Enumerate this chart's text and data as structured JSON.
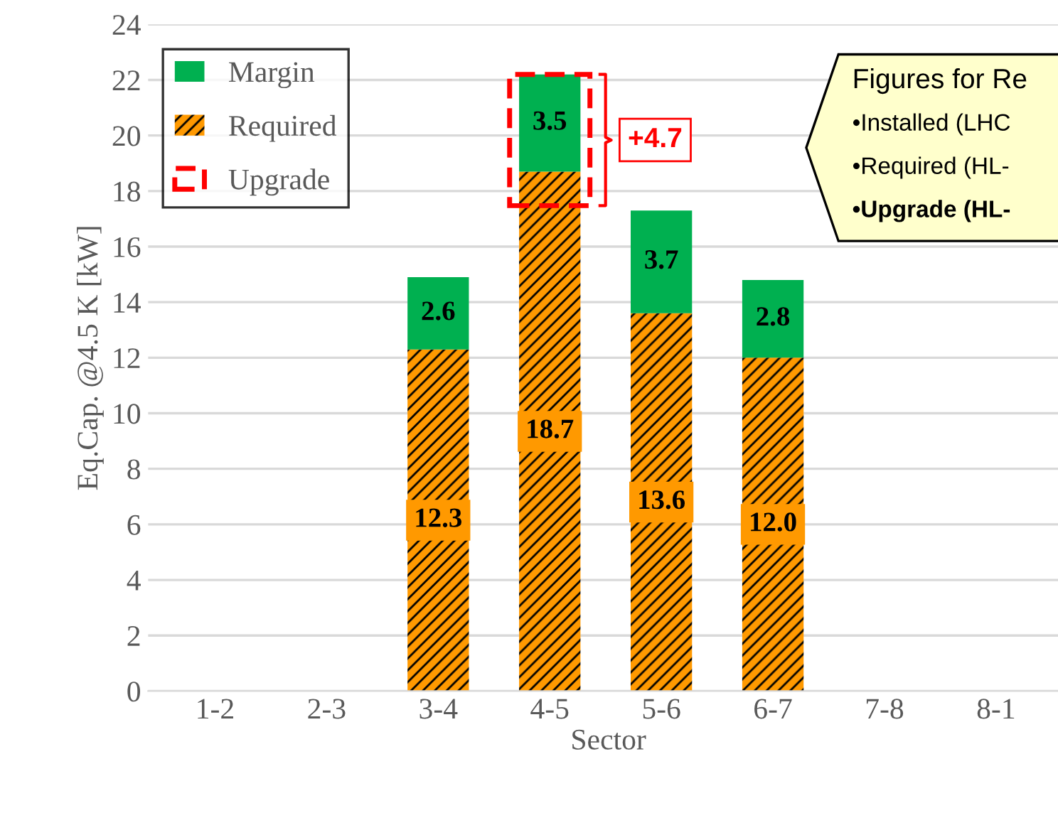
{
  "chart_data": {
    "type": "bar",
    "stacked": true,
    "xlabel": "Sector",
    "ylabel": "Eq.Cap. @4.5 K [kW]",
    "categories": [
      "1-2",
      "2-3",
      "3-4",
      "4-5",
      "5-6",
      "6-7",
      "7-8",
      "8-1"
    ],
    "series": [
      {
        "name": "Required",
        "color": "#ff9900",
        "values": [
          null,
          null,
          12.3,
          18.7,
          13.6,
          12.0,
          null,
          null
        ],
        "value_labels": [
          null,
          null,
          "12.3",
          "18.7",
          "13.6",
          "12.0",
          null,
          null
        ]
      },
      {
        "name": "Margin",
        "color": "#00b050",
        "values": [
          null,
          null,
          2.6,
          3.5,
          3.7,
          2.8,
          null,
          null
        ],
        "value_labels": [
          null,
          null,
          "2.6",
          "3.5",
          "3.7",
          "2.8",
          null,
          null
        ]
      },
      {
        "name": "Upgrade",
        "type": "bar",
        "color": "#ff0000",
        "line_style": "dashed",
        "values": [
          null,
          null,
          null,
          null,
          null,
          null,
          null,
          null
        ]
      }
    ],
    "ylim": [
      0,
      24
    ],
    "yticks": [
      0,
      2,
      4,
      6,
      8,
      10,
      12,
      14,
      16,
      18,
      20,
      22,
      24
    ],
    "grid": "y",
    "legend": "top left",
    "annotations": [
      "+4.7",
      "Figures for Re",
      "•Installed (LHC",
      "•Required (HL-",
      "•Upgrade (HL-"
    ]
  }
}
